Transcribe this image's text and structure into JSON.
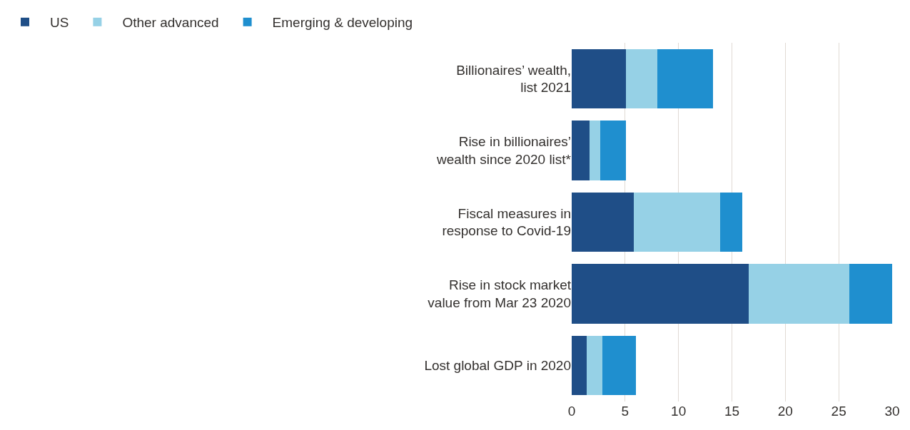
{
  "chart_data": {
    "type": "bar",
    "orientation": "horizontal",
    "stacked": true,
    "categories": [
      "Billionaires’ wealth,\nlist 2021",
      "Rise in billionaires’\nwealth since 2020 list*",
      "Fiscal measures in\nresponse to Covid-19",
      "Rise in stock market\nvalue from Mar 23 2020",
      "Lost global GDP in 2020"
    ],
    "series": [
      {
        "name": "US",
        "color": "#1f4e87",
        "values": [
          5.1,
          1.7,
          5.8,
          16.6,
          1.4
        ]
      },
      {
        "name": "Other advanced",
        "color": "#96d1e6",
        "values": [
          2.9,
          1.0,
          8.1,
          9.4,
          1.5
        ]
      },
      {
        "name": "Emerging & developing",
        "color": "#1f8fcf",
        "values": [
          5.2,
          2.4,
          2.1,
          4.0,
          3.1
        ]
      }
    ],
    "xlim": [
      0,
      30
    ],
    "xticks": [
      0,
      5,
      10,
      15,
      20,
      25,
      30
    ],
    "grid": "x",
    "legend": "top left"
  }
}
